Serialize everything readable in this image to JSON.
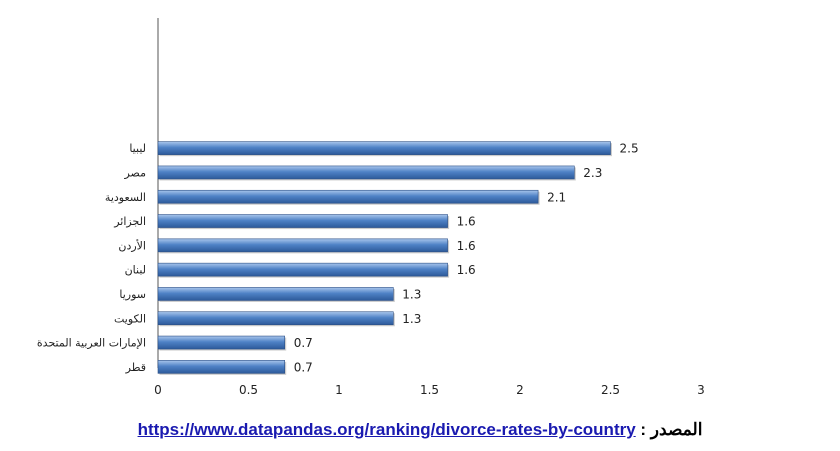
{
  "chart_data": {
    "type": "bar",
    "orientation": "horizontal",
    "categories": [
      "ليبيا",
      "مصر",
      "السعودية",
      "الجزائر",
      "الأردن",
      "لبنان",
      "سوريا",
      "الكويت",
      "الإمارات العربية المتحدة",
      "قطر"
    ],
    "values": [
      2.5,
      2.3,
      2.1,
      1.6,
      1.6,
      1.6,
      1.3,
      1.3,
      0.7,
      0.7
    ],
    "value_labels": [
      "2.5",
      "2.3",
      "2.1",
      "1.6",
      "1.6",
      "1.6",
      "1.3",
      "1.3",
      "0.7",
      "0.7"
    ],
    "xlim": [
      0,
      3
    ],
    "xticks": [
      0,
      0.5,
      1,
      1.5,
      2,
      2.5,
      3
    ],
    "xtick_labels": [
      "0",
      "0.5",
      "1",
      "1.5",
      "2",
      "2.5",
      "3"
    ],
    "bar_color": "#4a7ec0",
    "grid": false,
    "legend": "none"
  },
  "source": {
    "label": "المصدر :",
    "url": "https://www.datapandas.org/ranking/divorce-rates-by-country"
  }
}
